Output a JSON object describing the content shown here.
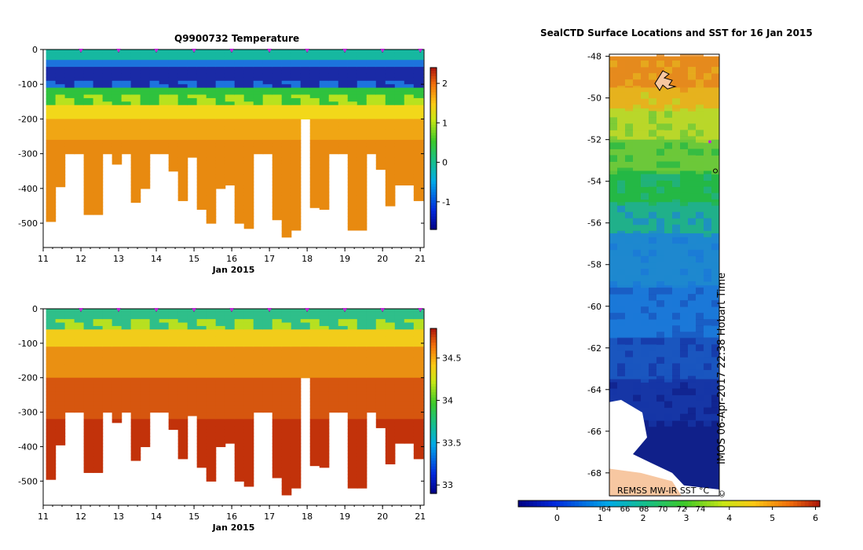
{
  "chart_data": [
    {
      "type": "heatmap",
      "title": "Q9900732  Temperature",
      "xlabel": "Jan 2015",
      "ylabel": "",
      "xlim": [
        11,
        21.1
      ],
      "ylim": [
        -570,
        0
      ],
      "x_ticks": [
        "11",
        "12",
        "13",
        "14",
        "15",
        "16",
        "17",
        "18",
        "19",
        "20",
        "21"
      ],
      "y_ticks": [
        "0",
        "-100",
        "-200",
        "-300",
        "-400",
        "-500"
      ],
      "colorbar": {
        "ticks": [
          "-1",
          "0",
          "1",
          "2"
        ],
        "range": [
          -1.7,
          2.4
        ]
      },
      "profile_markers_x": [
        12,
        13,
        14,
        15,
        16,
        17,
        18,
        19,
        20,
        21
      ],
      "profiles_x": [
        11.2,
        11.45,
        11.7,
        11.95,
        12.2,
        12.45,
        12.7,
        12.95,
        13.2,
        13.45,
        13.7,
        13.95,
        14.2,
        14.45,
        14.7,
        14.95,
        15.2,
        15.45,
        15.7,
        15.95,
        16.2,
        16.45,
        16.7,
        16.95,
        17.2,
        17.45,
        17.7,
        17.95,
        18.2,
        18.45,
        18.7,
        18.95,
        19.2,
        19.45,
        19.7,
        19.95,
        20.2,
        20.45,
        20.7,
        20.95
      ],
      "profile_depths": [
        -495,
        -395,
        -300,
        -300,
        -475,
        -475,
        -300,
        -330,
        -300,
        -440,
        -400,
        -300,
        -300,
        -350,
        -435,
        -310,
        -460,
        -500,
        -400,
        -390,
        -500,
        -515,
        -300,
        -300,
        -490,
        -540,
        -520,
        -200,
        -455,
        -460,
        -300,
        -300,
        -520,
        -520,
        -300,
        -345,
        -450,
        -390,
        -390,
        -435
      ],
      "color_classes": [
        {
          "value": -1.5,
          "color": "#1a2aa6"
        },
        {
          "value": -0.8,
          "color": "#1d74dd"
        },
        {
          "value": 0.0,
          "color": "#16b8a0"
        },
        {
          "value": 0.5,
          "color": "#2fc23e"
        },
        {
          "value": 1.0,
          "color": "#b8e21e"
        },
        {
          "value": 1.4,
          "color": "#f2d81a"
        },
        {
          "value": 1.8,
          "color": "#f0a614"
        },
        {
          "value": 2.2,
          "color": "#e88a10"
        }
      ]
    },
    {
      "type": "heatmap",
      "title": "",
      "xlabel": "Jan 2015",
      "ylabel": "",
      "xlim": [
        11,
        21.1
      ],
      "ylim": [
        -570,
        0
      ],
      "x_ticks": [
        "11",
        "12",
        "13",
        "14",
        "15",
        "16",
        "17",
        "18",
        "19",
        "20",
        "21"
      ],
      "y_ticks": [
        "0",
        "-100",
        "-200",
        "-300",
        "-400",
        "-500"
      ],
      "colorbar": {
        "ticks": [
          "33",
          "33.5",
          "34",
          "34.5"
        ],
        "range": [
          32.9,
          34.85
        ]
      },
      "profile_markers_x": [
        12,
        13,
        14,
        15,
        16,
        17,
        18,
        19,
        20,
        21
      ],
      "color_classes": [
        {
          "value": 33.9,
          "color": "#2fbf8a"
        },
        {
          "value": 34.1,
          "color": "#b7e021"
        },
        {
          "value": 34.35,
          "color": "#f2cc1a"
        },
        {
          "value": 34.55,
          "color": "#ea9012"
        },
        {
          "value": 34.7,
          "color": "#d6560f"
        },
        {
          "value": 34.8,
          "color": "#c2320a"
        }
      ]
    },
    {
      "type": "heatmap",
      "title": "SealCTD Surface Locations and SST for 16 Jan 2015",
      "xlabel": "",
      "ylabel": "",
      "y_ticks": [
        "-48",
        "-50",
        "-52",
        "-54",
        "-56",
        "-58",
        "-60",
        "-62",
        "-64",
        "-66",
        "-68"
      ],
      "ylim": [
        -69.1,
        -47.9
      ],
      "annotation": "REMSS MW-IR SST °C",
      "timestamp": "IMOS 06-Apr-2017 22:38 Hobart Time",
      "copyright": "©",
      "colorbar": {
        "ticks": [
          "0",
          "1",
          "2",
          "3",
          "4",
          "5",
          "6"
        ],
        "range": [
          -0.9,
          6.1
        ],
        "overlay_ticks": [
          "64",
          "66",
          "68",
          "70",
          "72",
          "74"
        ]
      },
      "sst_bands": [
        {
          "lat": -48.0,
          "color": "#e58a1d"
        },
        {
          "lat": -49.5,
          "color": "#e6b21e"
        },
        {
          "lat": -50.5,
          "color": "#b9d72a"
        },
        {
          "lat": -52.0,
          "color": "#6cc83a"
        },
        {
          "lat": -53.5,
          "color": "#24b845"
        },
        {
          "lat": -55.0,
          "color": "#20b08a"
        },
        {
          "lat": -56.5,
          "color": "#1e88cf"
        },
        {
          "lat": -59.0,
          "color": "#1b78d8"
        },
        {
          "lat": -61.5,
          "color": "#1a56bf"
        },
        {
          "lat": -63.5,
          "color": "#1636a6"
        },
        {
          "lat": -65.5,
          "color": "#10208a"
        }
      ]
    }
  ]
}
